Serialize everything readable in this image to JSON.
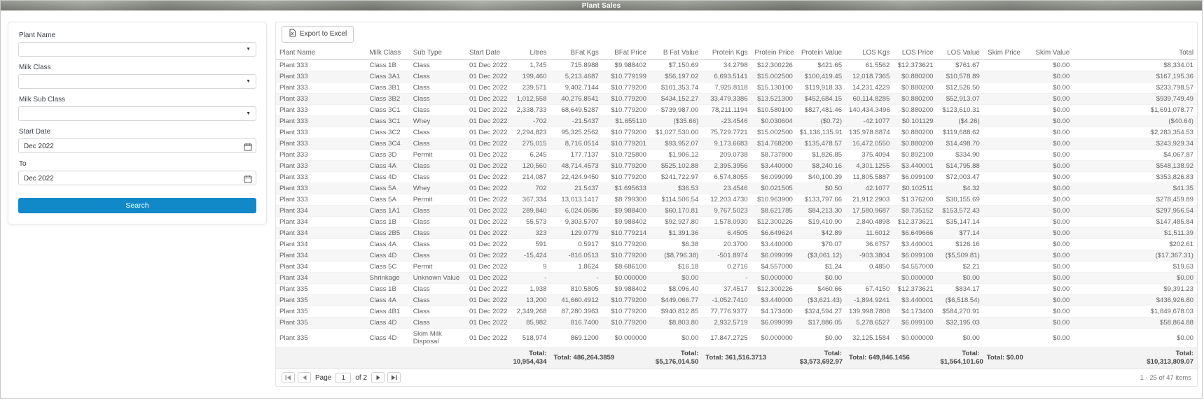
{
  "header": {
    "title": "Plant Sales"
  },
  "filters": {
    "plant_name_label": "Plant Name",
    "milk_class_label": "Milk Class",
    "milk_sub_class_label": "Milk Sub Class",
    "start_date_label": "Start Date",
    "to_label": "To",
    "start_date_value": "Dec 2022",
    "to_date_value": "Dec 2022",
    "search_label": "Search"
  },
  "toolbar": {
    "export_label": "Export to Excel"
  },
  "grid": {
    "columns": [
      "Plant Name",
      "Milk Class",
      "Sub Type",
      "Start Date",
      "Litres",
      "BFat Kgs",
      "BFat Price",
      "B Fat Value",
      "Protein Kgs",
      "Protein Price",
      "Protein Value",
      "LOS Kgs",
      "LOS Price",
      "LOS Value",
      "Skim Price",
      "Skim Value",
      "Total"
    ],
    "rows": [
      [
        "Plant 333",
        "Class 1B",
        "Class",
        "01 Dec 2022",
        "1,745",
        "715.8988",
        "$9.988402",
        "$7,150.69",
        "34.2798",
        "$12.300226",
        "$421.65",
        "61.5562",
        "$12.373621",
        "$761.67",
        "",
        "$0.00",
        "$8,334.01"
      ],
      [
        "Plant 333",
        "Class 3A1",
        "Class",
        "01 Dec 2022",
        "199,460",
        "5,213.4687",
        "$10.779199",
        "$56,197.02",
        "6,693.5141",
        "$15.002500",
        "$100,419.45",
        "12,018.7365",
        "$0.880200",
        "$10,578.89",
        "",
        "$0.00",
        "$167,195.36"
      ],
      [
        "Plant 333",
        "Class 3B1",
        "Class",
        "01 Dec 2022",
        "239,571",
        "9,402.7144",
        "$10.779200",
        "$101,353.74",
        "7,925.8118",
        "$15.130100",
        "$119,918.33",
        "14,231.4229",
        "$0.880200",
        "$12,526.50",
        "",
        "$0.00",
        "$233,798.57"
      ],
      [
        "Plant 333",
        "Class 3B2",
        "Class",
        "01 Dec 2022",
        "1,012,558",
        "40,276.8541",
        "$10.779200",
        "$434,152.27",
        "33,479.3386",
        "$13.521300",
        "$452,684.15",
        "60,114.8285",
        "$0.880200",
        "$52,913.07",
        "",
        "$0.00",
        "$939,749.49"
      ],
      [
        "Plant 333",
        "Class 3C1",
        "Class",
        "01 Dec 2022",
        "2,338,733",
        "68,649.5287",
        "$10.779200",
        "$739,987.00",
        "78,211.1194",
        "$10.580100",
        "$827,481.46",
        "140,434.3496",
        "$0.880200",
        "$123,610.31",
        "",
        "$0.00",
        "$1,691,078.77"
      ],
      [
        "Plant 333",
        "Class 3C1",
        "Whey",
        "01 Dec 2022",
        "-702",
        "-21.5437",
        "$1.655110",
        "($35.66)",
        "-23.4546",
        "$0.030604",
        "($0.72)",
        "-42.1077",
        "$0.101129",
        "($4.26)",
        "",
        "$0.00",
        "($40.64)"
      ],
      [
        "Plant 333",
        "Class 3C2",
        "Class",
        "01 Dec 2022",
        "2,294,823",
        "95,325.2562",
        "$10.779200",
        "$1,027,530.00",
        "75,729.7721",
        "$15.002500",
        "$1,136,135.91",
        "135,978.8874",
        "$0.880200",
        "$119,688.62",
        "",
        "$0.00",
        "$2,283,354.53"
      ],
      [
        "Plant 333",
        "Class 3C4",
        "Class",
        "01 Dec 2022",
        "275,015",
        "8,716.0514",
        "$10.779201",
        "$93,952.07",
        "9,173.6683",
        "$14.768200",
        "$135,478.57",
        "16,472.0550",
        "$0.880200",
        "$14,498.70",
        "",
        "$0.00",
        "$243,929.34"
      ],
      [
        "Plant 333",
        "Class 3D",
        "Permit",
        "01 Dec 2022",
        "6,245",
        "177.7137",
        "$10.725800",
        "$1,906.12",
        "209.0738",
        "$8.737800",
        "$1,826.85",
        "375.4094",
        "$0.892100",
        "$334.90",
        "",
        "$0.00",
        "$4,067.87"
      ],
      [
        "Plant 333",
        "Class 4A",
        "Class",
        "01 Dec 2022",
        "120,560",
        "48,714.4573",
        "$10.779200",
        "$525,102.88",
        "2,395.3956",
        "$3.440000",
        "$8,240.16",
        "4,301.1255",
        "$3.440001",
        "$14,795.88",
        "",
        "$0.00",
        "$548,138.92"
      ],
      [
        "Plant 333",
        "Class 4D",
        "Class",
        "01 Dec 2022",
        "214,087",
        "22,424.9450",
        "$10.779200",
        "$241,722.97",
        "6,574.8055",
        "$6.099099",
        "$40,100.39",
        "11,805.5887",
        "$6.099100",
        "$72,003.47",
        "",
        "$0.00",
        "$353,826.83"
      ],
      [
        "Plant 333",
        "Class 5A",
        "Whey",
        "01 Dec 2022",
        "702",
        "21.5437",
        "$1.695633",
        "$36.53",
        "23.4546",
        "$0.021505",
        "$0.50",
        "42.1077",
        "$0.102511",
        "$4.32",
        "",
        "$0.00",
        "$41.35"
      ],
      [
        "Plant 333",
        "Class 5A",
        "Permit",
        "01 Dec 2022",
        "367,334",
        "13,013.1417",
        "$8.799300",
        "$114,506.54",
        "12,203.4730",
        "$10.963900",
        "$133,797.66",
        "21,912.2903",
        "$1.376200",
        "$30,155.69",
        "",
        "$0.00",
        "$278,459.89"
      ],
      [
        "Plant 334",
        "Class 1A1",
        "Class",
        "01 Dec 2022",
        "289,840",
        "6,024.0686",
        "$9.988400",
        "$60,170.81",
        "9,767.5023",
        "$8.621785",
        "$84,213.30",
        "17,580.9687",
        "$8.735152",
        "$153,572.43",
        "",
        "$0.00",
        "$297,956.54"
      ],
      [
        "Plant 334",
        "Class 1B",
        "Class",
        "01 Dec 2022",
        "55,573",
        "9,303.5707",
        "$9.988402",
        "$92,927.80",
        "1,578.0930",
        "$12.300226",
        "$19,410.90",
        "2,840.4898",
        "$12.373621",
        "$35,147.14",
        "",
        "$0.00",
        "$147,485.84"
      ],
      [
        "Plant 334",
        "Class 2B5",
        "Class",
        "01 Dec 2022",
        "323",
        "129.0779",
        "$10.779214",
        "$1,391.36",
        "6.4505",
        "$6.649624",
        "$42.89",
        "11.6012",
        "$6.649666",
        "$77.14",
        "",
        "$0.00",
        "$1,511.39"
      ],
      [
        "Plant 334",
        "Class 4A",
        "Class",
        "01 Dec 2022",
        "591",
        "0.5917",
        "$10.779200",
        "$6.38",
        "20.3700",
        "$3.440000",
        "$70.07",
        "36.6757",
        "$3.440001",
        "$126.16",
        "",
        "$0.00",
        "$202.61"
      ],
      [
        "Plant 334",
        "Class 4D",
        "Class",
        "01 Dec 2022",
        "-15,424",
        "-816.0513",
        "$10.779200",
        "($8,796.38)",
        "-501.8974",
        "$6.099099",
        "($3,061.12)",
        "-903.3804",
        "$6.099100",
        "($5,509.81)",
        "",
        "$0.00",
        "($17,367.31)"
      ],
      [
        "Plant 334",
        "Class 5C",
        "Permit",
        "01 Dec 2022",
        "9",
        "1.8624",
        "$8.686100",
        "$16.18",
        "0.2716",
        "$4.557000",
        "$1.24",
        "0.4850",
        "$4.557000",
        "$2.21",
        "",
        "$0.00",
        "$19.63"
      ],
      [
        "Plant 334",
        "Shrinkage",
        "Unknown Value",
        "01 Dec 2022",
        "-",
        "-",
        "$0.000000",
        "$0.00",
        "-",
        "$0.000000",
        "$0.00",
        "",
        "$0.000000",
        "$0.00",
        "",
        "$0.00",
        "$0.00"
      ],
      [
        "Plant 335",
        "Class 1B",
        "Class",
        "01 Dec 2022",
        "1,938",
        "810.5805",
        "$9.988402",
        "$8,096.40",
        "37.4517",
        "$12.300226",
        "$460.66",
        "67.4150",
        "$12.373621",
        "$834.17",
        "",
        "$0.00",
        "$9,391.23"
      ],
      [
        "Plant 335",
        "Class 4A",
        "Class",
        "01 Dec 2022",
        "13,200",
        "41,660.4912",
        "$10.779200",
        "$449,066.77",
        "-1,052.7410",
        "$3.440000",
        "($3,621.43)",
        "-1,894.9241",
        "$3.440001",
        "($6,518.54)",
        "",
        "$0.00",
        "$436,926.80"
      ],
      [
        "Plant 335",
        "Class 4B1",
        "Class",
        "01 Dec 2022",
        "2,349,268",
        "87,280.3963",
        "$10.779200",
        "$940,812.85",
        "77,776.9377",
        "$4.173400",
        "$324,594.27",
        "139,998.7808",
        "$4.173400",
        "$584,270.91",
        "",
        "$0.00",
        "$1,849,678.03"
      ],
      [
        "Plant 335",
        "Class 4D",
        "Class",
        "01 Dec 2022",
        "85,982",
        "816.7400",
        "$10.779200",
        "$8,803.80",
        "2,932.5719",
        "$6.099099",
        "$17,886.05",
        "5,278.6527",
        "$6.099100",
        "$32,195.03",
        "",
        "$0.00",
        "$58,864.88"
      ],
      [
        "Plant 335",
        "Class 4D",
        "Skim Milk Disposal",
        "01 Dec 2022",
        "518,974",
        "869.1200",
        "$0.000000",
        "$0.00",
        "17,847.2725",
        "$0.000000",
        "$0.00",
        "32,125.1584",
        "$0.000000",
        "$0.00",
        "",
        "$0.00",
        "$0.00"
      ]
    ],
    "footer": [
      "",
      "",
      "",
      "",
      "Total:\n10,954,434",
      "Total: 486,264.3859",
      "",
      "Total:\n$5,176,014.50",
      "Total: 361,516.3713",
      "",
      "Total:\n$3,573,692.97",
      "Total: 649,846.1456",
      "",
      "Total:\n$1,564,101.60",
      "Total: $0.00",
      "",
      "Total:\n$10,313,809.07"
    ]
  },
  "pager": {
    "page_label": "Page",
    "page_value": "1",
    "of_label": "of 2",
    "items_label": "1 - 25 of 47 items"
  },
  "icons": {
    "export_excel_icon": "excel-file ▤",
    "calendar_icon": "calendar",
    "dropdown_icon": "chevron-down ▼",
    "pager_first_icon": "first-page |◄",
    "pager_prev_icon": "previous-page ◄",
    "pager_next_icon": "next-page ►",
    "pager_last_icon": "last-page ►|"
  },
  "colors": {
    "accent": "#1189C9",
    "header_bar": "#8F938C",
    "row_stripe": "#F6F6F6"
  }
}
